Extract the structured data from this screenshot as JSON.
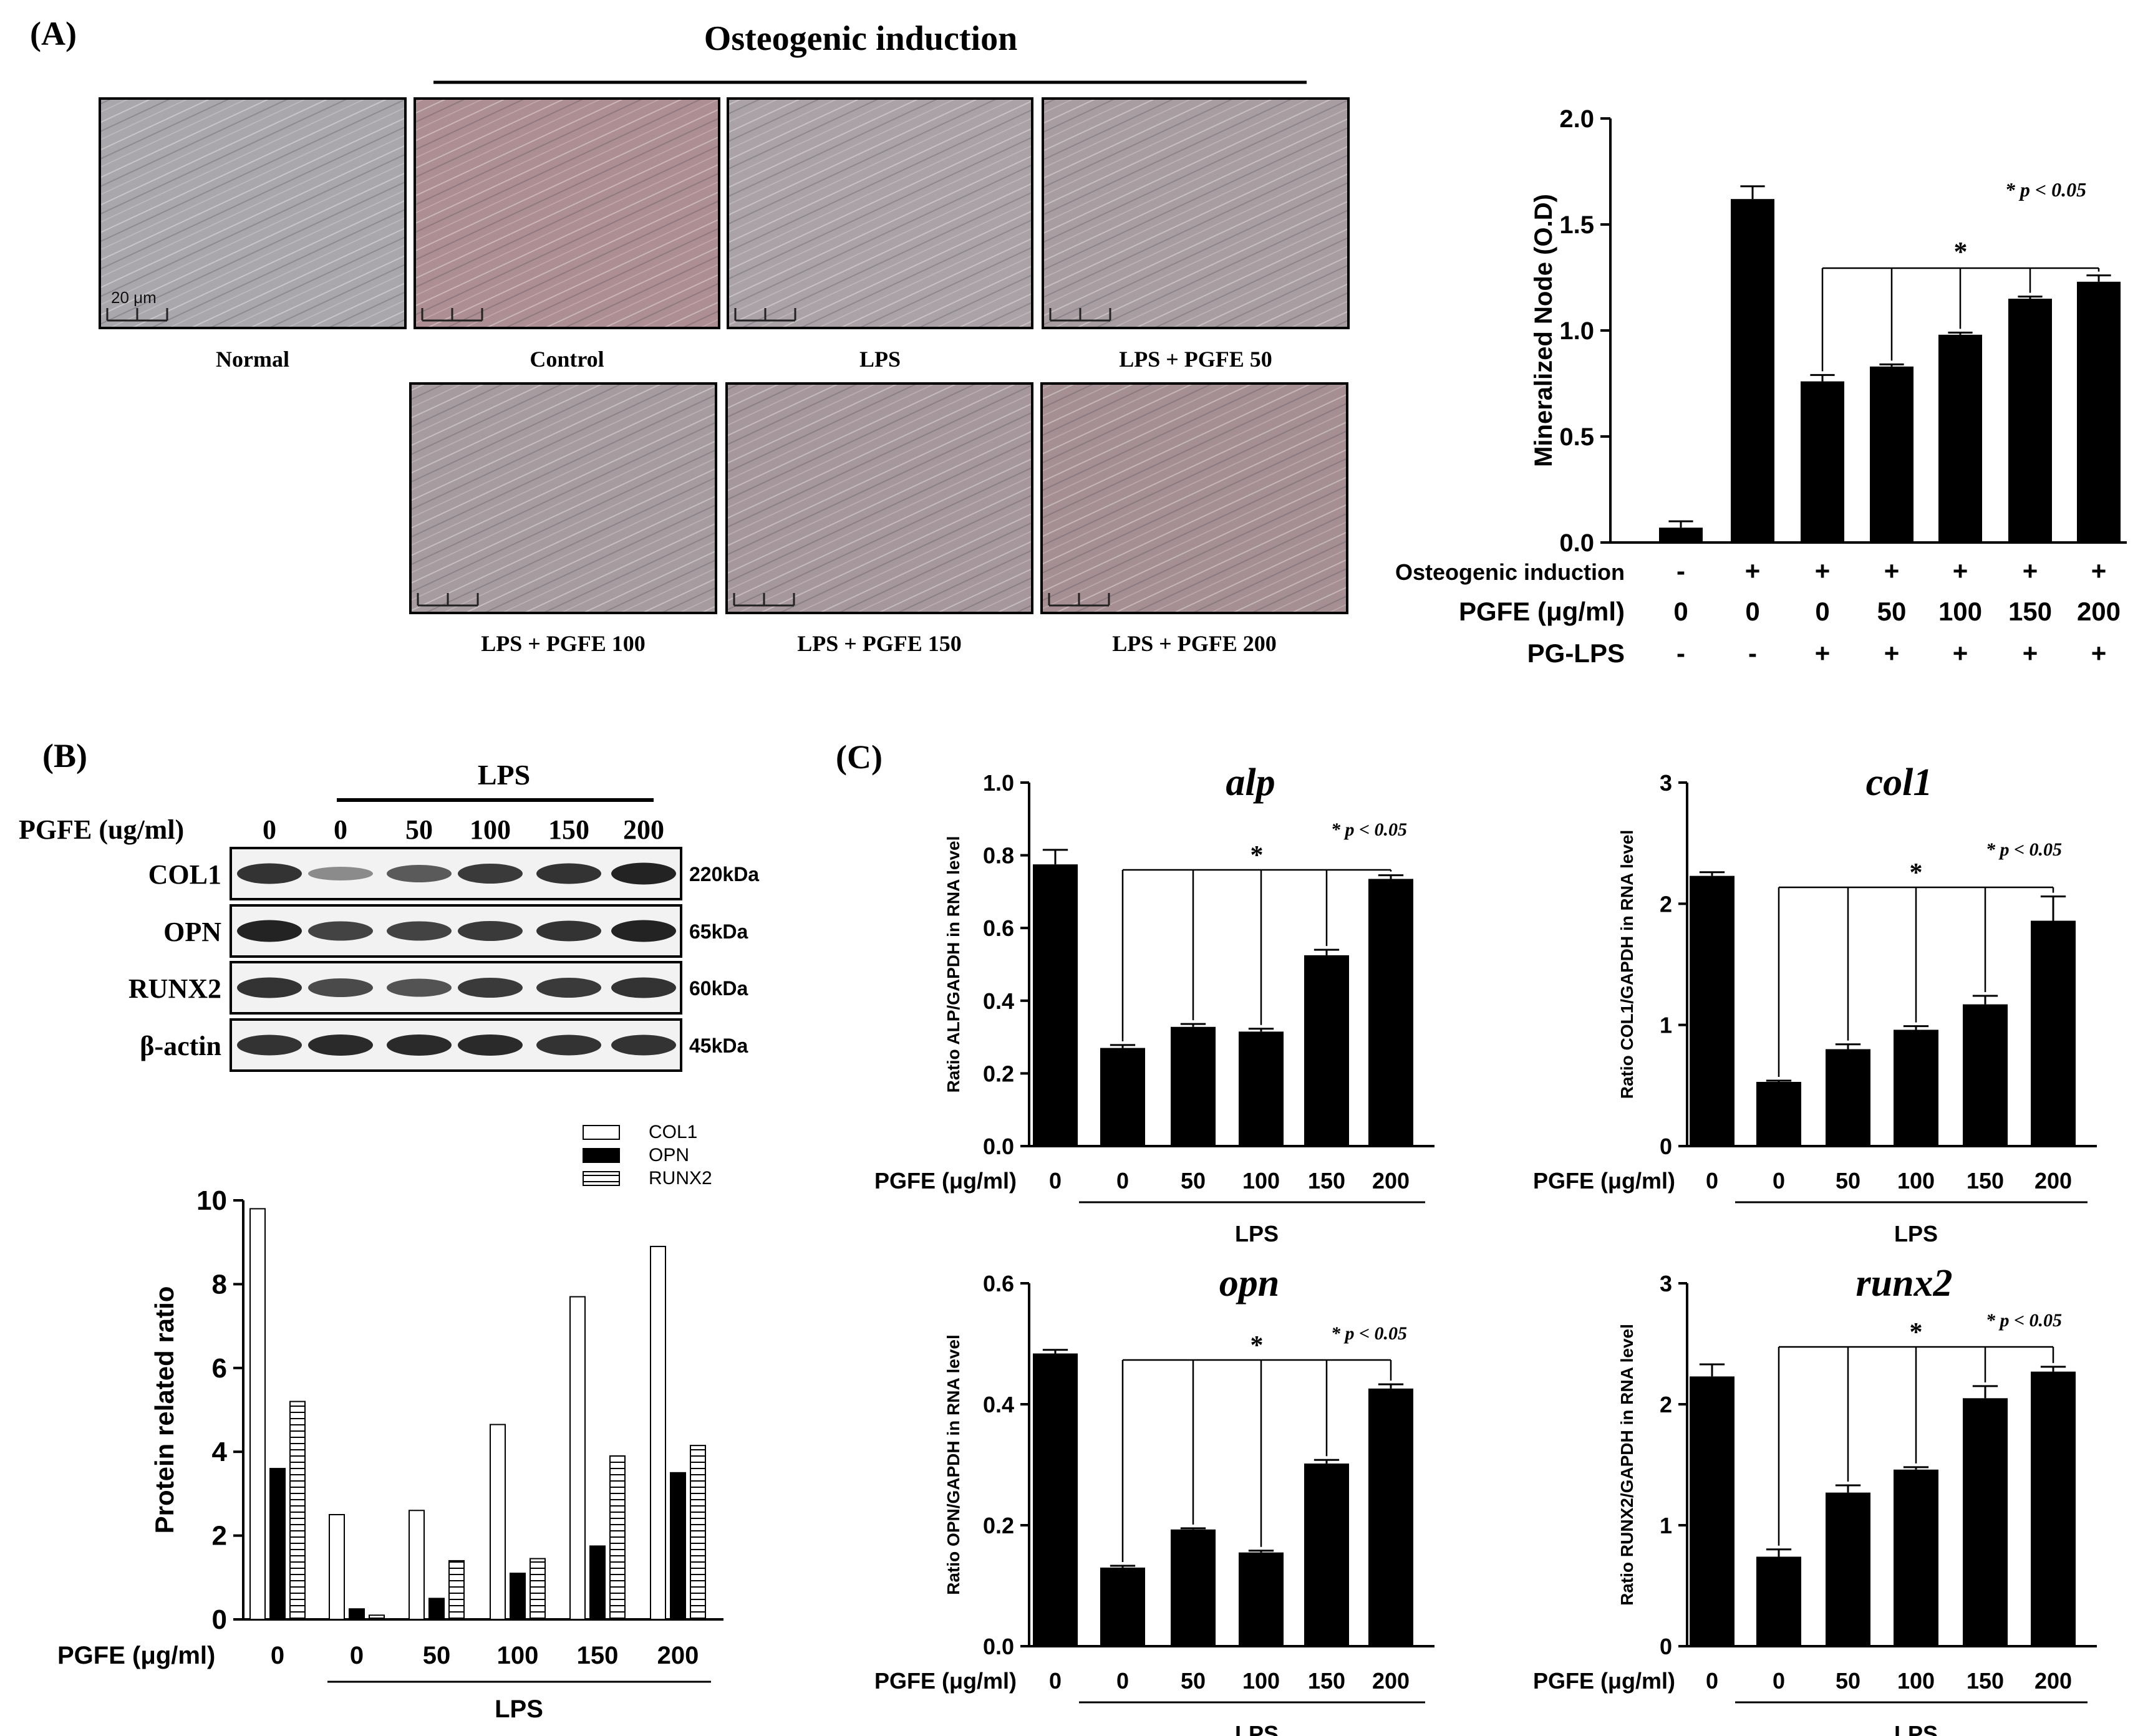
{
  "panel_a": {
    "label": "(A)",
    "header": "Osteogenic induction",
    "images": [
      {
        "caption": "Normal",
        "scale_bar": "20 μm",
        "tint": "#a9a7ab"
      },
      {
        "caption": "Control",
        "tint": "#ad8e92"
      },
      {
        "caption": "LPS",
        "tint": "#aaa2a6"
      },
      {
        "caption": "LPS + PGFE 50",
        "tint": "#a89ea2"
      },
      {
        "caption": "LPS + PGFE 100",
        "tint": "#a69ca0"
      },
      {
        "caption": "LPS + PGFE 150",
        "tint": "#a5979b"
      },
      {
        "caption": "LPS + PGFE 200",
        "tint": "#a58f93"
      }
    ]
  },
  "panel_b": {
    "label": "(B)",
    "blot": {
      "lps_label": "LPS",
      "pgfe_label": "PGFE (ug/ml)",
      "lanes": [
        "0",
        "0",
        "50",
        "100",
        "150",
        "200"
      ],
      "rows": [
        {
          "name": "COL1",
          "size": "220kDa",
          "intensity": [
            0.85,
            0.3,
            0.6,
            0.8,
            0.85,
            0.95
          ]
        },
        {
          "name": "OPN",
          "size": "65kDa",
          "intensity": [
            0.95,
            0.75,
            0.75,
            0.8,
            0.85,
            0.95
          ]
        },
        {
          "name": "RUNX2",
          "size": "60kDa",
          "intensity": [
            0.85,
            0.7,
            0.65,
            0.8,
            0.8,
            0.85
          ]
        },
        {
          "name": "β-actin",
          "size": "45kDa",
          "intensity": [
            0.85,
            0.9,
            0.9,
            0.9,
            0.85,
            0.85
          ]
        }
      ]
    }
  },
  "panel_c": {
    "label": "(C)"
  },
  "chart_data": [
    {
      "id": "mineralized",
      "type": "bar",
      "ylabel": "Mineralized Node (O.D)",
      "ylim": [
        0,
        2.0
      ],
      "yticks": [
        "0.0",
        "0.5",
        "1.0",
        "1.5",
        "2.0"
      ],
      "values": [
        0.07,
        1.62,
        0.76,
        0.83,
        0.98,
        1.15,
        1.23
      ],
      "errors": [
        0.03,
        0.06,
        0.03,
        0.01,
        0.01,
        0.01,
        0.03
      ],
      "significance": "*",
      "p_text": "* p < 0.05",
      "conditions": [
        {
          "name": "Osteogenic induction",
          "values": [
            "-",
            "+",
            "+",
            "+",
            "+",
            "+",
            "+"
          ]
        },
        {
          "name": "PGFE (μg/ml)",
          "values": [
            "0",
            "0",
            "0",
            "50",
            "100",
            "150",
            "200"
          ]
        },
        {
          "name": "PG-LPS",
          "values": [
            "-",
            "-",
            "+",
            "+",
            "+",
            "+",
            "+"
          ]
        }
      ]
    },
    {
      "id": "protein",
      "type": "bar",
      "ylabel": "Protein related ratio",
      "ylim": [
        0,
        10
      ],
      "yticks": [
        "0",
        "2",
        "4",
        "6",
        "8",
        "10"
      ],
      "categories": [
        "0",
        "0",
        "50",
        "100",
        "150",
        "200"
      ],
      "xlabel_prefix": "PGFE (μg/ml)",
      "group_label": "LPS",
      "series": [
        {
          "name": "COL1",
          "values": [
            9.8,
            2.5,
            2.6,
            4.65,
            7.7,
            8.9
          ]
        },
        {
          "name": "OPN",
          "values": [
            3.6,
            0.25,
            0.5,
            1.1,
            1.75,
            3.5
          ]
        },
        {
          "name": "RUNX2",
          "values": [
            5.2,
            0.1,
            1.4,
            1.45,
            3.9,
            4.15
          ]
        }
      ]
    },
    {
      "id": "alp",
      "type": "bar",
      "title": "alp",
      "ylabel": "Ratio ALP/GAPDH in RNA level",
      "ylim": [
        0,
        1.0
      ],
      "yticks": [
        "0.0",
        "0.2",
        "0.4",
        "0.6",
        "0.8",
        "1.0"
      ],
      "categories": [
        "0",
        "0",
        "50",
        "100",
        "150",
        "200"
      ],
      "xlabel_prefix": "PGFE (μg/ml)",
      "group_label": "LPS",
      "values": [
        0.775,
        0.27,
        0.328,
        0.315,
        0.525,
        0.735
      ],
      "errors": [
        0.04,
        0.008,
        0.008,
        0.008,
        0.015,
        0.01
      ],
      "significance": "*",
      "p_text": "* p < 0.05"
    },
    {
      "id": "col1",
      "type": "bar",
      "title": "col1",
      "ylabel": "Ratio COL1/GAPDH in RNA level",
      "ylim": [
        0,
        3
      ],
      "yticks": [
        "0",
        "1",
        "2",
        "3"
      ],
      "categories": [
        "0",
        "0",
        "50",
        "100",
        "150",
        "200"
      ],
      "xlabel_prefix": "PGFE (μg/ml)",
      "group_label": "LPS",
      "values": [
        2.23,
        0.53,
        0.8,
        0.96,
        1.17,
        1.86
      ],
      "errors": [
        0.03,
        0.01,
        0.04,
        0.03,
        0.07,
        0.2
      ],
      "significance": "*",
      "p_text": "* p < 0.05"
    },
    {
      "id": "opn",
      "type": "bar",
      "title": "opn",
      "ylabel": "Ratio OPN/GAPDH in RNA level",
      "ylim": [
        0,
        0.6
      ],
      "yticks": [
        "0.0",
        "0.2",
        "0.4",
        "0.6"
      ],
      "categories": [
        "0",
        "0",
        "50",
        "100",
        "150",
        "200"
      ],
      "xlabel_prefix": "PGFE (μg/ml)",
      "group_label": "LPS",
      "values": [
        0.484,
        0.13,
        0.193,
        0.155,
        0.302,
        0.426
      ],
      "errors": [
        0.006,
        0.003,
        0.002,
        0.003,
        0.006,
        0.007
      ],
      "significance": "*",
      "p_text": "* p < 0.05"
    },
    {
      "id": "runx2",
      "type": "bar",
      "title": "runx2",
      "ylabel": "Ratio RUNX2/GAPDH in RNA level",
      "ylim": [
        0,
        3
      ],
      "yticks": [
        "0",
        "1",
        "2",
        "3"
      ],
      "categories": [
        "0",
        "0",
        "50",
        "100",
        "150",
        "200"
      ],
      "xlabel_prefix": "PGFE (μg/ml)",
      "group_label": "LPS",
      "values": [
        2.23,
        0.74,
        1.27,
        1.46,
        2.05,
        2.27
      ],
      "errors": [
        0.1,
        0.06,
        0.06,
        0.02,
        0.1,
        0.04
      ],
      "significance": "*",
      "p_text": "* p < 0.05"
    }
  ]
}
